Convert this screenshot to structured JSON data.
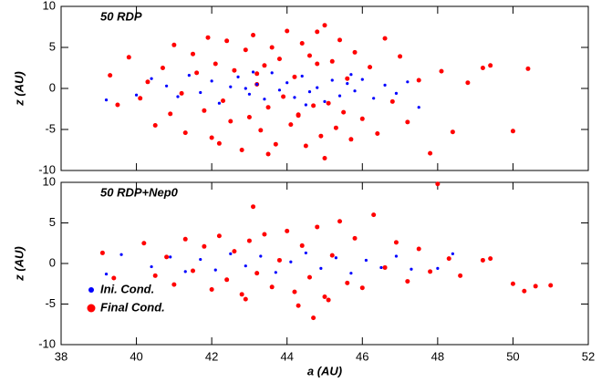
{
  "chart_data": [
    {
      "type": "scatter",
      "title": "50 RDP",
      "ylabel": "z (AU)",
      "show_xticklabels": false,
      "xlim": [
        38,
        52
      ],
      "xticks": [
        38,
        40,
        42,
        44,
        46,
        48,
        50,
        52
      ],
      "ylim": [
        -10,
        10
      ],
      "yticks": [
        -10,
        -5,
        0,
        5,
        10
      ],
      "series": [
        {
          "color": "#ff0000",
          "x": [
            39.3,
            39.5,
            39.8,
            40.1,
            40.3,
            40.5,
            40.7,
            40.9,
            41.0,
            41.2,
            41.3,
            41.5,
            41.6,
            41.8,
            41.9,
            42.0,
            42.1,
            42.3,
            42.4,
            42.5,
            42.6,
            42.8,
            42.9,
            43.0,
            43.1,
            43.2,
            43.3,
            43.4,
            43.5,
            43.6,
            43.7,
            43.8,
            43.9,
            44.0,
            44.1,
            44.2,
            44.3,
            44.4,
            44.5,
            44.6,
            44.7,
            44.8,
            44.9,
            45.0,
            45.1,
            45.2,
            45.3,
            45.4,
            45.5,
            45.6,
            45.7,
            45.8,
            46.0,
            46.2,
            46.4,
            46.6,
            46.8,
            47.0,
            47.2,
            47.5,
            47.8,
            48.1,
            48.4,
            48.8,
            49.2,
            49.4,
            50.0,
            50.4,
            42.2,
            43.5,
            44.3,
            45.0,
            44.8,
            43.2
          ],
          "values": [
            1.6,
            -2.0,
            3.8,
            -1.2,
            0.8,
            -4.5,
            2.5,
            -3.1,
            5.3,
            -0.6,
            -5.4,
            4.2,
            1.9,
            -2.7,
            6.2,
            -6.0,
            3.0,
            -1.5,
            5.8,
            -4.0,
            2.2,
            -7.5,
            4.7,
            -3.5,
            6.5,
            0.5,
            -5.1,
            2.8,
            -2.3,
            5.0,
            -6.8,
            3.6,
            -1.0,
            7.0,
            -4.4,
            1.4,
            -3.2,
            5.5,
            -7.0,
            4.0,
            -2.1,
            6.9,
            -5.8,
            7.7,
            -1.8,
            3.3,
            -4.8,
            5.9,
            -2.9,
            1.2,
            -6.2,
            4.4,
            -3.7,
            2.6,
            -5.5,
            6.1,
            -1.6,
            3.9,
            -4.1,
            1.0,
            -7.9,
            2.1,
            -5.3,
            0.7,
            2.5,
            2.8,
            -5.2,
            2.4,
            -6.7,
            -8.0,
            -3.3,
            -8.5,
            3.0,
            1.8
          ]
        },
        {
          "color": "#0000ff",
          "x": [
            39.2,
            40.0,
            40.4,
            40.8,
            41.1,
            41.4,
            41.7,
            42.0,
            42.2,
            42.5,
            42.7,
            43.0,
            43.2,
            43.4,
            43.6,
            43.8,
            44.0,
            44.2,
            44.4,
            44.6,
            44.8,
            45.0,
            45.2,
            45.4,
            45.6,
            45.8,
            46.0,
            46.3,
            46.6,
            46.9,
            47.2,
            47.5,
            43.1,
            44.5,
            42.9,
            45.7
          ],
          "values": [
            -1.4,
            -0.8,
            1.2,
            0.3,
            -1.0,
            1.6,
            -0.5,
            0.9,
            -1.8,
            0.2,
            1.4,
            -0.7,
            0.5,
            -1.3,
            1.9,
            -0.2,
            0.7,
            -1.1,
            1.5,
            -0.4,
            0.1,
            -1.6,
            1.0,
            -0.9,
            0.6,
            -0.3,
            1.1,
            -1.2,
            0.4,
            -0.6,
            0.8,
            -2.3,
            2.0,
            -2.0,
            0.0,
            1.7
          ]
        }
      ]
    },
    {
      "type": "scatter",
      "title": "50 RDP+Nep0",
      "ylabel": "z (AU)",
      "xlabel": "a (AU)",
      "show_xticklabels": true,
      "legend": "lower left",
      "xlim": [
        38,
        52
      ],
      "xticks": [
        38,
        40,
        42,
        44,
        46,
        48,
        50,
        52
      ],
      "ylim": [
        -10,
        10
      ],
      "yticks": [
        -10,
        -5,
        0,
        5,
        10
      ],
      "series": [
        {
          "name": "Ini. Cond.",
          "color": "#0000ff",
          "x": [
            39.2,
            39.6,
            40.4,
            40.9,
            41.3,
            41.7,
            42.1,
            42.5,
            42.9,
            43.3,
            43.7,
            44.1,
            44.5,
            44.9,
            45.3,
            45.7,
            46.1,
            46.5,
            46.9,
            47.3,
            48.0,
            48.4
          ],
          "values": [
            -1.3,
            1.1,
            -0.4,
            0.8,
            -1.0,
            0.5,
            -0.8,
            1.2,
            -0.3,
            0.9,
            -1.1,
            0.2,
            1.3,
            -0.6,
            0.7,
            -1.2,
            0.4,
            -0.5,
            0.9,
            -0.7,
            -0.6,
            1.2
          ]
        },
        {
          "name": "Final Cond.",
          "color": "#ff0000",
          "x": [
            39.1,
            39.4,
            40.2,
            40.5,
            40.8,
            41.0,
            41.3,
            41.5,
            41.8,
            42.0,
            42.2,
            42.4,
            42.6,
            42.8,
            43.0,
            43.2,
            43.4,
            43.6,
            43.8,
            44.0,
            44.2,
            44.4,
            44.6,
            44.8,
            45.0,
            45.2,
            45.4,
            45.6,
            45.8,
            46.0,
            46.3,
            46.6,
            46.9,
            47.2,
            47.5,
            47.8,
            48.0,
            48.3,
            48.6,
            49.2,
            49.4,
            50.0,
            50.3,
            50.6,
            51.0,
            43.1,
            44.3,
            45.1,
            42.9,
            44.7
          ],
          "values": [
            1.3,
            -1.8,
            2.5,
            -1.5,
            0.8,
            -2.6,
            3.0,
            -0.9,
            2.1,
            -3.2,
            3.4,
            -2.0,
            1.5,
            -3.8,
            2.8,
            -1.2,
            3.6,
            -2.9,
            0.4,
            4.0,
            -3.5,
            2.2,
            -1.7,
            4.5,
            -4.1,
            1.0,
            5.2,
            -2.4,
            3.1,
            -3.0,
            6.0,
            -0.5,
            2.6,
            -2.2,
            1.8,
            -1.0,
            9.8,
            0.6,
            -1.5,
            0.4,
            0.6,
            -2.5,
            -3.4,
            -2.8,
            -2.7,
            7.0,
            -5.2,
            -4.5,
            -4.4,
            -6.7
          ]
        }
      ]
    }
  ]
}
